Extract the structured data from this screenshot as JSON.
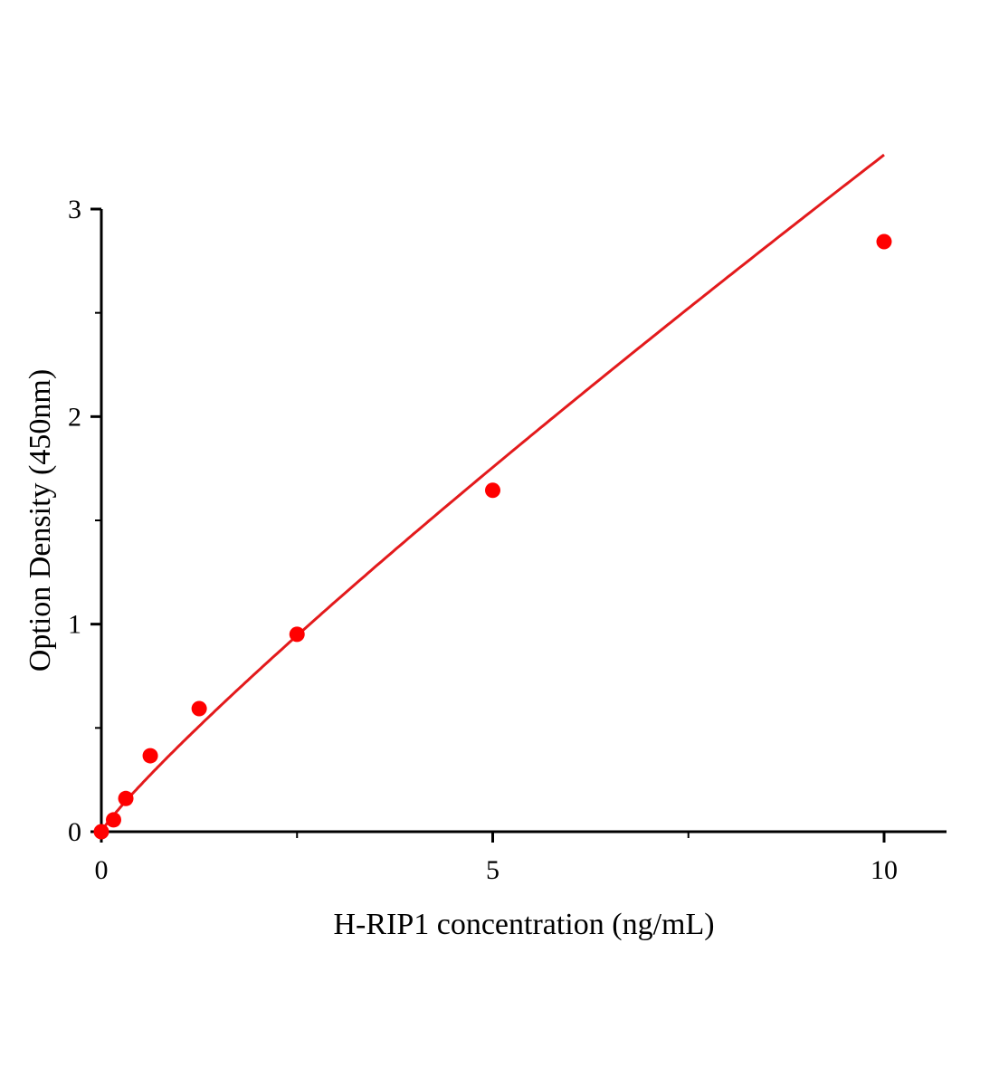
{
  "chart_data": {
    "type": "scatter",
    "title": "",
    "xlabel": "H-RIP1 concentration (ng/mL)",
    "ylabel": "Option Density (450nm)",
    "xlim": [
      0,
      10.8
    ],
    "ylim": [
      0,
      3
    ],
    "x_ticks": [
      0,
      5,
      10
    ],
    "x_tick_labels": [
      "0",
      "5",
      "10"
    ],
    "x_minor_ticks": [
      2.5,
      7.5
    ],
    "y_ticks": [
      0,
      1,
      2,
      3
    ],
    "y_tick_labels": [
      "0",
      "1",
      "2",
      "3"
    ],
    "y_minor_ticks": [
      0.5,
      1.5,
      2.5
    ],
    "grid": false,
    "legend": "none",
    "series": [
      {
        "x": [
          0,
          0.156,
          0.3125,
          0.625,
          1.25,
          2.5,
          5,
          10
        ],
        "y": [
          0.0,
          0.057,
          0.16,
          0.366,
          0.593,
          0.951,
          1.645,
          2.843
        ],
        "color": "#ff0000",
        "fit_line": "power",
        "fit_color": "#e31a1c"
      }
    ]
  }
}
